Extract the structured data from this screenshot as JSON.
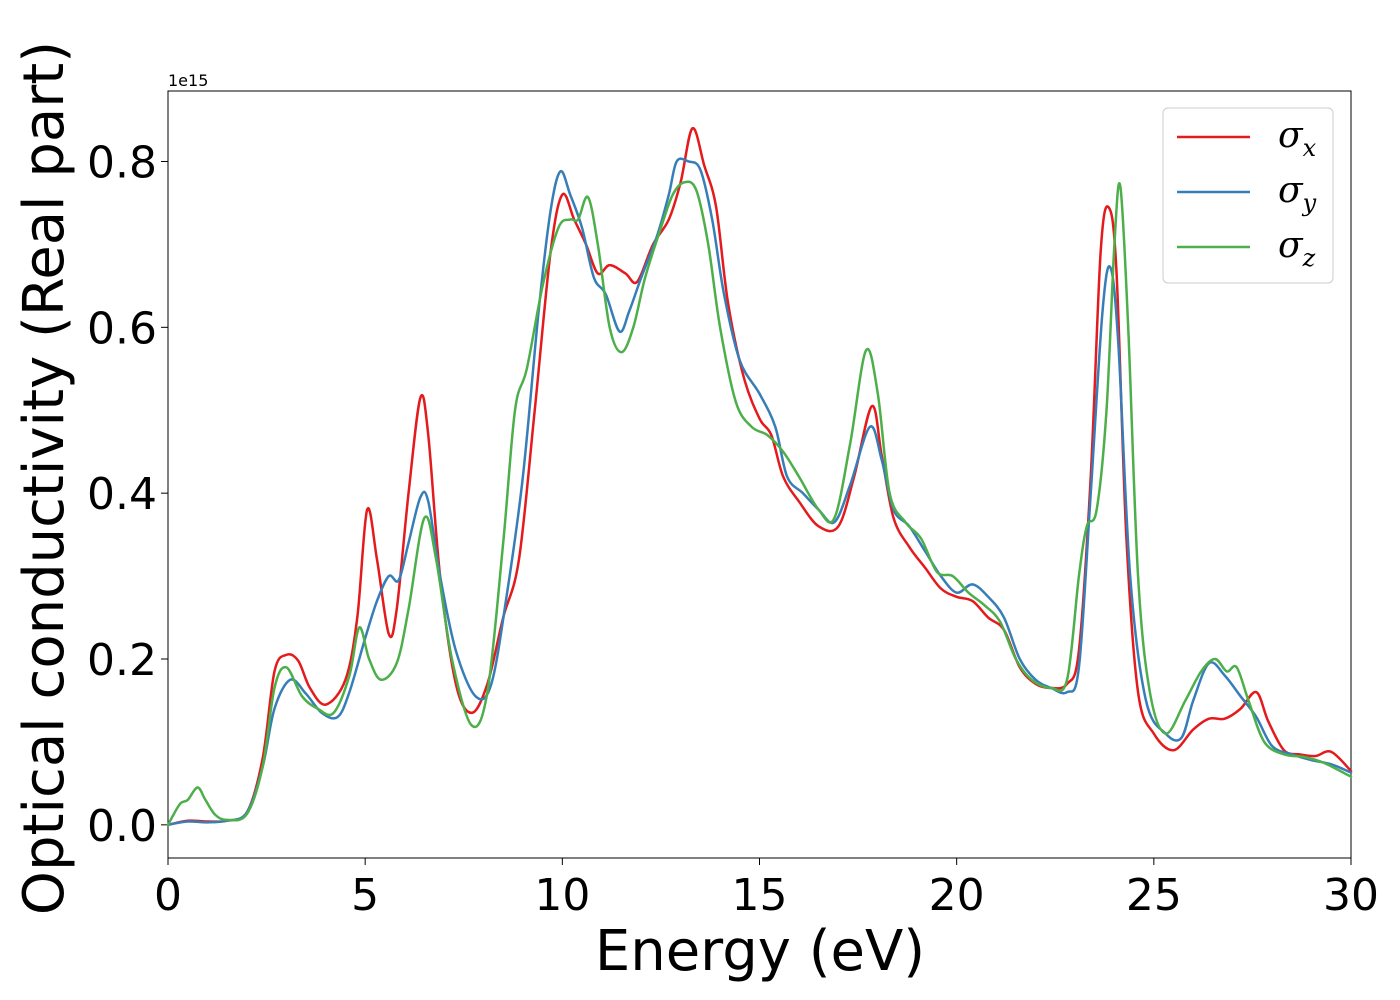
{
  "chart_data": {
    "type": "line",
    "xlabel": "Energy (eV)",
    "ylabel": "Optical conductivity (Real part)",
    "y_offset_label": "1e15",
    "xlim": [
      0,
      30
    ],
    "ylim": [
      -0.04,
      0.885
    ],
    "x_ticks": [
      0,
      5,
      10,
      15,
      20,
      25,
      30
    ],
    "x_tick_labels": [
      "0",
      "5",
      "10",
      "15",
      "20",
      "25",
      "30"
    ],
    "y_ticks": [
      0.0,
      0.2,
      0.4,
      0.6,
      0.8
    ],
    "y_tick_labels": [
      "0.0",
      "0.2",
      "0.4",
      "0.6",
      "0.8"
    ],
    "grid": false,
    "legend_position": "top-right",
    "series": [
      {
        "name": "σx",
        "legend_base": "σ",
        "legend_sub": "x",
        "color": "#e41a1c",
        "points": [
          [
            0,
            0
          ],
          [
            0.5,
            0.005
          ],
          [
            1,
            0.004
          ],
          [
            1.5,
            0.005
          ],
          [
            2,
            0.015
          ],
          [
            2.4,
            0.08
          ],
          [
            2.7,
            0.185
          ],
          [
            3,
            0.205
          ],
          [
            3.3,
            0.198
          ],
          [
            3.6,
            0.165
          ],
          [
            4,
            0.145
          ],
          [
            4.5,
            0.175
          ],
          [
            4.8,
            0.25
          ],
          [
            5.05,
            0.38
          ],
          [
            5.3,
            0.32
          ],
          [
            5.6,
            0.23
          ],
          [
            5.8,
            0.26
          ],
          [
            6.1,
            0.4
          ],
          [
            6.4,
            0.515
          ],
          [
            6.6,
            0.47
          ],
          [
            6.9,
            0.3
          ],
          [
            7.3,
            0.17
          ],
          [
            7.7,
            0.135
          ],
          [
            8.1,
            0.17
          ],
          [
            8.5,
            0.25
          ],
          [
            8.9,
            0.32
          ],
          [
            9.3,
            0.5
          ],
          [
            9.7,
            0.69
          ],
          [
            10,
            0.76
          ],
          [
            10.3,
            0.73
          ],
          [
            10.6,
            0.7
          ],
          [
            10.9,
            0.665
          ],
          [
            11.2,
            0.675
          ],
          [
            11.6,
            0.665
          ],
          [
            11.9,
            0.655
          ],
          [
            12.3,
            0.7
          ],
          [
            12.7,
            0.73
          ],
          [
            13,
            0.775
          ],
          [
            13.3,
            0.84
          ],
          [
            13.6,
            0.795
          ],
          [
            13.9,
            0.745
          ],
          [
            14.2,
            0.63
          ],
          [
            14.6,
            0.54
          ],
          [
            15,
            0.49
          ],
          [
            15.3,
            0.47
          ],
          [
            15.6,
            0.42
          ],
          [
            16,
            0.39
          ],
          [
            16.5,
            0.36
          ],
          [
            17,
            0.36
          ],
          [
            17.4,
            0.42
          ],
          [
            17.85,
            0.505
          ],
          [
            18.1,
            0.445
          ],
          [
            18.4,
            0.37
          ],
          [
            18.8,
            0.335
          ],
          [
            19.2,
            0.31
          ],
          [
            19.6,
            0.285
          ],
          [
            20,
            0.275
          ],
          [
            20.4,
            0.27
          ],
          [
            20.8,
            0.25
          ],
          [
            21.2,
            0.235
          ],
          [
            21.6,
            0.19
          ],
          [
            22,
            0.17
          ],
          [
            22.4,
            0.165
          ],
          [
            22.8,
            0.17
          ],
          [
            23.1,
            0.21
          ],
          [
            23.4,
            0.42
          ],
          [
            23.65,
            0.69
          ],
          [
            23.85,
            0.745
          ],
          [
            24.05,
            0.67
          ],
          [
            24.3,
            0.35
          ],
          [
            24.6,
            0.16
          ],
          [
            25,
            0.11
          ],
          [
            25.5,
            0.09
          ],
          [
            26,
            0.115
          ],
          [
            26.4,
            0.128
          ],
          [
            26.8,
            0.128
          ],
          [
            27.2,
            0.14
          ],
          [
            27.6,
            0.16
          ],
          [
            27.9,
            0.125
          ],
          [
            28.3,
            0.09
          ],
          [
            28.7,
            0.085
          ],
          [
            29.1,
            0.083
          ],
          [
            29.5,
            0.088
          ],
          [
            30,
            0.065
          ]
        ]
      },
      {
        "name": "σy",
        "legend_base": "σ",
        "legend_sub": "y",
        "color": "#377eb8",
        "points": [
          [
            0,
            0
          ],
          [
            0.5,
            0.004
          ],
          [
            1,
            0.003
          ],
          [
            1.5,
            0.005
          ],
          [
            2,
            0.015
          ],
          [
            2.4,
            0.07
          ],
          [
            2.7,
            0.14
          ],
          [
            3.1,
            0.175
          ],
          [
            3.5,
            0.158
          ],
          [
            3.9,
            0.135
          ],
          [
            4.3,
            0.13
          ],
          [
            4.6,
            0.16
          ],
          [
            5,
            0.225
          ],
          [
            5.3,
            0.27
          ],
          [
            5.6,
            0.3
          ],
          [
            5.85,
            0.295
          ],
          [
            6.1,
            0.34
          ],
          [
            6.4,
            0.395
          ],
          [
            6.6,
            0.39
          ],
          [
            6.9,
            0.3
          ],
          [
            7.3,
            0.21
          ],
          [
            7.8,
            0.155
          ],
          [
            8.2,
            0.17
          ],
          [
            8.6,
            0.28
          ],
          [
            9,
            0.42
          ],
          [
            9.4,
            0.62
          ],
          [
            9.7,
            0.74
          ],
          [
            9.95,
            0.788
          ],
          [
            10.2,
            0.76
          ],
          [
            10.5,
            0.72
          ],
          [
            10.8,
            0.66
          ],
          [
            11.1,
            0.64
          ],
          [
            11.45,
            0.595
          ],
          [
            11.7,
            0.62
          ],
          [
            12,
            0.66
          ],
          [
            12.4,
            0.71
          ],
          [
            12.7,
            0.76
          ],
          [
            12.9,
            0.8
          ],
          [
            13.2,
            0.8
          ],
          [
            13.5,
            0.79
          ],
          [
            13.8,
            0.73
          ],
          [
            14.1,
            0.64
          ],
          [
            14.5,
            0.56
          ],
          [
            15,
            0.52
          ],
          [
            15.4,
            0.48
          ],
          [
            15.7,
            0.42
          ],
          [
            16.1,
            0.4
          ],
          [
            16.5,
            0.38
          ],
          [
            16.9,
            0.365
          ],
          [
            17.3,
            0.41
          ],
          [
            17.8,
            0.48
          ],
          [
            18.1,
            0.44
          ],
          [
            18.4,
            0.38
          ],
          [
            18.8,
            0.36
          ],
          [
            19.2,
            0.33
          ],
          [
            19.6,
            0.3
          ],
          [
            20,
            0.28
          ],
          [
            20.4,
            0.29
          ],
          [
            20.8,
            0.275
          ],
          [
            21.2,
            0.25
          ],
          [
            21.6,
            0.2
          ],
          [
            22,
            0.175
          ],
          [
            22.4,
            0.165
          ],
          [
            22.8,
            0.16
          ],
          [
            23.1,
            0.19
          ],
          [
            23.4,
            0.4
          ],
          [
            23.7,
            0.62
          ],
          [
            23.9,
            0.672
          ],
          [
            24.1,
            0.58
          ],
          [
            24.4,
            0.3
          ],
          [
            24.8,
            0.15
          ],
          [
            25.3,
            0.11
          ],
          [
            25.7,
            0.105
          ],
          [
            26,
            0.15
          ],
          [
            26.4,
            0.195
          ],
          [
            26.8,
            0.18
          ],
          [
            27.2,
            0.155
          ],
          [
            27.6,
            0.13
          ],
          [
            28,
            0.095
          ],
          [
            28.5,
            0.085
          ],
          [
            29,
            0.078
          ],
          [
            29.5,
            0.073
          ],
          [
            30,
            0.063
          ]
        ]
      },
      {
        "name": "σz",
        "legend_base": "σ",
        "legend_sub": "z",
        "color": "#4daf4a",
        "points": [
          [
            0,
            0
          ],
          [
            0.3,
            0.025
          ],
          [
            0.5,
            0.03
          ],
          [
            0.75,
            0.045
          ],
          [
            0.95,
            0.03
          ],
          [
            1.2,
            0.012
          ],
          [
            1.5,
            0.006
          ],
          [
            2,
            0.013
          ],
          [
            2.4,
            0.07
          ],
          [
            2.7,
            0.165
          ],
          [
            3,
            0.19
          ],
          [
            3.4,
            0.155
          ],
          [
            3.8,
            0.14
          ],
          [
            4.2,
            0.135
          ],
          [
            4.6,
            0.18
          ],
          [
            4.85,
            0.238
          ],
          [
            5.1,
            0.2
          ],
          [
            5.4,
            0.175
          ],
          [
            5.8,
            0.195
          ],
          [
            6.1,
            0.26
          ],
          [
            6.5,
            0.37
          ],
          [
            6.8,
            0.32
          ],
          [
            7.2,
            0.2
          ],
          [
            7.7,
            0.12
          ],
          [
            8.1,
            0.16
          ],
          [
            8.5,
            0.34
          ],
          [
            8.8,
            0.5
          ],
          [
            9.1,
            0.55
          ],
          [
            9.5,
            0.65
          ],
          [
            9.9,
            0.72
          ],
          [
            10.2,
            0.73
          ],
          [
            10.4,
            0.73
          ],
          [
            10.65,
            0.757
          ],
          [
            10.9,
            0.7
          ],
          [
            11.2,
            0.6
          ],
          [
            11.5,
            0.57
          ],
          [
            11.8,
            0.6
          ],
          [
            12.1,
            0.66
          ],
          [
            12.5,
            0.72
          ],
          [
            12.8,
            0.76
          ],
          [
            13.1,
            0.775
          ],
          [
            13.4,
            0.765
          ],
          [
            13.7,
            0.7
          ],
          [
            14,
            0.6
          ],
          [
            14.4,
            0.51
          ],
          [
            14.8,
            0.48
          ],
          [
            15.2,
            0.47
          ],
          [
            15.6,
            0.45
          ],
          [
            16,
            0.42
          ],
          [
            16.5,
            0.38
          ],
          [
            16.9,
            0.37
          ],
          [
            17.3,
            0.46
          ],
          [
            17.7,
            0.572
          ],
          [
            18,
            0.52
          ],
          [
            18.3,
            0.4
          ],
          [
            18.7,
            0.365
          ],
          [
            19.1,
            0.345
          ],
          [
            19.5,
            0.305
          ],
          [
            19.9,
            0.3
          ],
          [
            20.3,
            0.28
          ],
          [
            20.7,
            0.265
          ],
          [
            21.1,
            0.245
          ],
          [
            21.5,
            0.2
          ],
          [
            21.9,
            0.175
          ],
          [
            22.4,
            0.165
          ],
          [
            22.8,
            0.175
          ],
          [
            23.1,
            0.3
          ],
          [
            23.3,
            0.36
          ],
          [
            23.55,
            0.38
          ],
          [
            23.8,
            0.5
          ],
          [
            24,
            0.7
          ],
          [
            24.15,
            0.77
          ],
          [
            24.35,
            0.6
          ],
          [
            24.6,
            0.3
          ],
          [
            24.9,
            0.16
          ],
          [
            25.3,
            0.11
          ],
          [
            25.8,
            0.15
          ],
          [
            26.2,
            0.185
          ],
          [
            26.55,
            0.2
          ],
          [
            26.85,
            0.185
          ],
          [
            27.1,
            0.19
          ],
          [
            27.4,
            0.15
          ],
          [
            27.8,
            0.1
          ],
          [
            28.3,
            0.085
          ],
          [
            28.8,
            0.082
          ],
          [
            29.3,
            0.075
          ],
          [
            30,
            0.058
          ]
        ]
      }
    ]
  }
}
